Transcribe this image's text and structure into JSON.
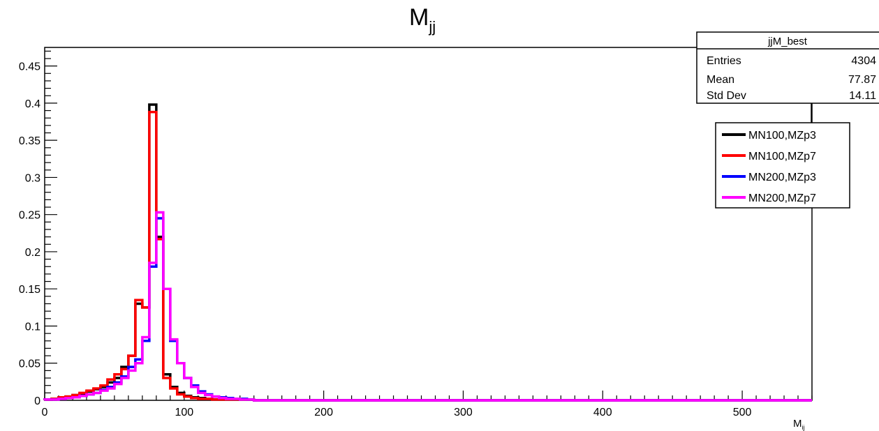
{
  "chart_data": {
    "type": "histogram-step",
    "title_main": "M",
    "title_sub": "jj",
    "xlabel_main": "M",
    "xlabel_sub": "ij",
    "ylabel": "",
    "xlim": [
      0,
      550
    ],
    "ylim": [
      0,
      0.475
    ],
    "x_ticks": [
      0,
      100,
      200,
      300,
      400,
      500
    ],
    "x_tick_labels": [
      "0",
      "100",
      "200",
      "300",
      "400",
      "500"
    ],
    "y_ticks": [
      0,
      0.05,
      0.1,
      0.15,
      0.2,
      0.25,
      0.3,
      0.35,
      0.4,
      0.45
    ],
    "y_tick_labels": [
      "0",
      "0.05",
      "0.1",
      "0.15",
      "0.2",
      "0.25",
      "0.3",
      "0.35",
      "0.4",
      "0.45"
    ],
    "grid": false,
    "legend_position": "top-right",
    "bin_width": 5,
    "bin_start": 0,
    "series": [
      {
        "name": "MN100,MZp3",
        "color": "#000000",
        "values": [
          0.001,
          0.002,
          0.004,
          0.005,
          0.007,
          0.009,
          0.012,
          0.015,
          0.018,
          0.024,
          0.03,
          0.045,
          0.06,
          0.13,
          0.125,
          0.398,
          0.22,
          0.035,
          0.018,
          0.01,
          0.006,
          0.004,
          0.003,
          0.002,
          0.001,
          0.001,
          0.001,
          0.001,
          0.001,
          0.001
        ]
      },
      {
        "name": "MN100,MZp7",
        "color": "#ff0000",
        "values": [
          0.001,
          0.002,
          0.004,
          0.005,
          0.007,
          0.01,
          0.013,
          0.016,
          0.02,
          0.028,
          0.035,
          0.042,
          0.06,
          0.135,
          0.125,
          0.388,
          0.217,
          0.03,
          0.016,
          0.008,
          0.005,
          0.003,
          0.002,
          0.002,
          0.001,
          0.001,
          0.001,
          0.001,
          0.001,
          0.001
        ]
      },
      {
        "name": "MN200,MZp3",
        "color": "#0000ff",
        "values": [
          0.001,
          0.001,
          0.002,
          0.003,
          0.004,
          0.006,
          0.008,
          0.01,
          0.014,
          0.018,
          0.024,
          0.032,
          0.045,
          0.055,
          0.08,
          0.18,
          0.245,
          0.15,
          0.08,
          0.05,
          0.03,
          0.02,
          0.012,
          0.008,
          0.005,
          0.004,
          0.003,
          0.002,
          0.002,
          0.001
        ]
      },
      {
        "name": "MN200,MZp7",
        "color": "#ff00ff",
        "values": [
          0.001,
          0.001,
          0.002,
          0.003,
          0.004,
          0.006,
          0.008,
          0.01,
          0.013,
          0.016,
          0.022,
          0.03,
          0.04,
          0.05,
          0.085,
          0.185,
          0.253,
          0.15,
          0.082,
          0.05,
          0.03,
          0.018,
          0.01,
          0.007,
          0.005,
          0.003,
          0.002,
          0.002,
          0.001,
          0.001
        ]
      }
    ],
    "stats_box": {
      "title": "jjM_best",
      "rows": [
        {
          "label": "Entries",
          "value": "4304"
        },
        {
          "label": "Mean",
          "value": "77.87"
        },
        {
          "label": "Std Dev",
          "value": "14.11"
        }
      ]
    }
  }
}
